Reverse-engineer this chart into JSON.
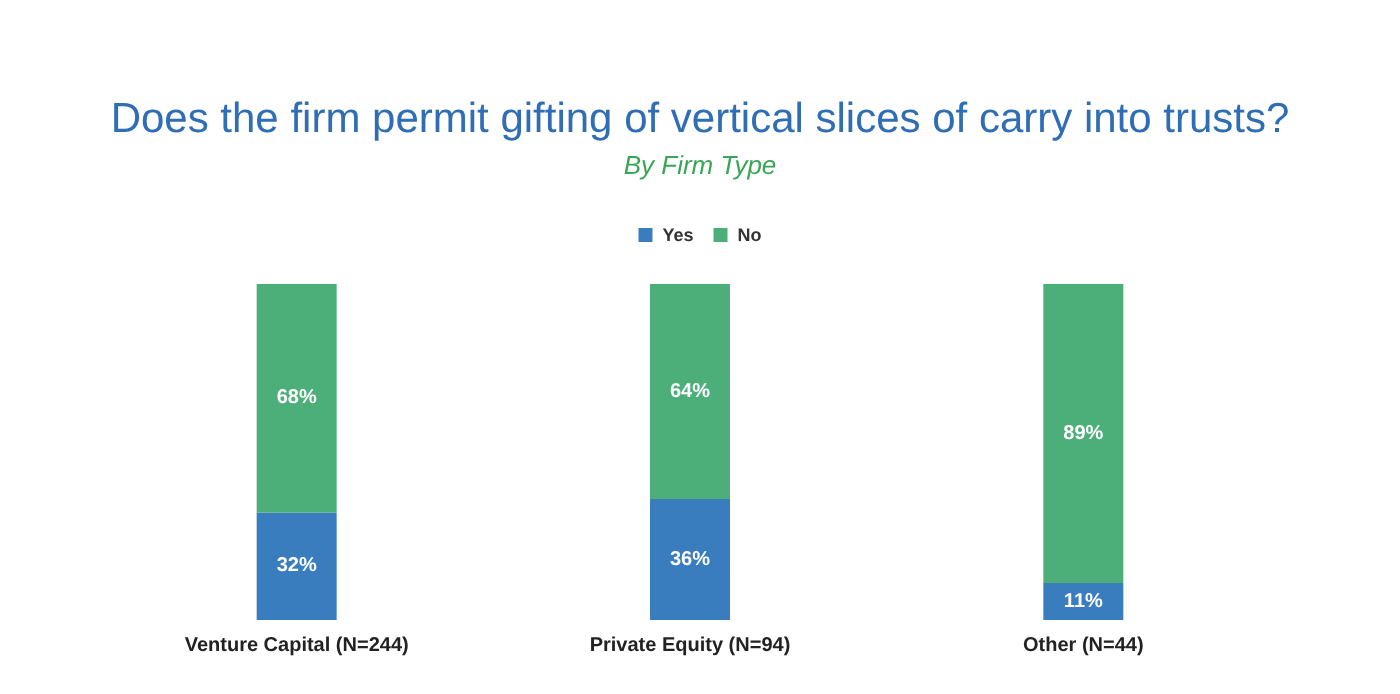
{
  "chart_data": {
    "type": "bar",
    "title": "Does the firm permit gifting of vertical slices of carry into trusts?",
    "subtitle": "By Firm Type",
    "categories": [
      "Venture Capital (N=244)",
      "Private Equity (N=94)",
      "Other (N=44)"
    ],
    "stacked": true,
    "legend": "top",
    "series": [
      {
        "name": "Yes",
        "color": "#3a7dbf",
        "values": [
          32,
          36,
          11
        ],
        "value_labels": [
          "32%",
          "36%",
          "11%"
        ]
      },
      {
        "name": "No",
        "color": "#4cae78",
        "values": [
          68,
          64,
          89
        ],
        "value_labels": [
          "68%",
          "64%",
          "89%"
        ]
      }
    ]
  }
}
